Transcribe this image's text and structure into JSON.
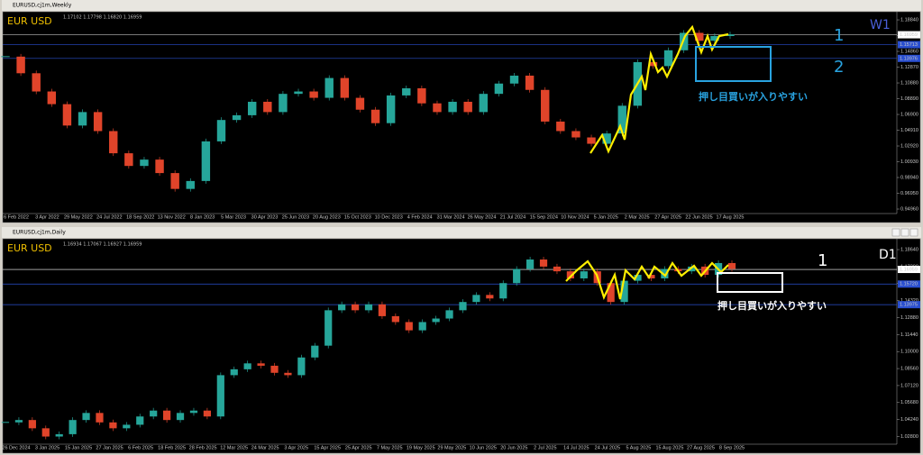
{
  "windows": [
    {
      "title": "EURUSD,cj1m,Weekly",
      "info": "1.17102 1.17798 1.16820 1.16959",
      "symbol": "EUR USD",
      "timeframe": "W1",
      "note": "押し目買いが入りやすい",
      "marks": [
        "1",
        "2"
      ],
      "ylim": [
        0.9371,
        1.193
      ],
      "yticks": [
        {
          "value": 1.1884,
          "label": "1.18840"
        },
        {
          "value": 1.1685,
          "label": "1.16850"
        },
        {
          "value": 1.1486,
          "label": "1.14860"
        },
        {
          "value": 1.1287,
          "label": "1.12870"
        },
        {
          "value": 1.1088,
          "label": "1.10880"
        },
        {
          "value": 1.0889,
          "label": "1.08890"
        },
        {
          "value": 1.069,
          "label": "1.06900"
        },
        {
          "value": 1.0491,
          "label": "1.04910"
        },
        {
          "value": 1.0292,
          "label": "1.02920"
        },
        {
          "value": 1.0093,
          "label": "1.00930"
        },
        {
          "value": 0.9894,
          "label": "0.98940"
        },
        {
          "value": 0.9695,
          "label": "0.96950"
        },
        {
          "value": 0.9496,
          "label": "0.94960"
        }
      ],
      "levels": [
        {
          "value": 1.16959,
          "label": "1.16959",
          "color": "#c0c0c0"
        },
        {
          "value": 1.15713,
          "label": "1.15713",
          "color": "#2a4fd0"
        },
        {
          "value": 1.13976,
          "label": "1.13976",
          "color": "#2a4fd0"
        }
      ],
      "dates": [
        "6 Feb 2022",
        "3 Apr 2022",
        "29 May 2022",
        "24 Jul 2022",
        "18 Sep 2022",
        "13 Nov 2022",
        "8 Jan 2023",
        "5 Mar 2023",
        "30 Apr 2023",
        "25 Jun 2023",
        "20 Aug 2023",
        "15 Oct 2023",
        "10 Dec 2023",
        "4 Feb 2024",
        "31 Mar 2024",
        "26 May 2024",
        "21 Jul 2024",
        "15 Sep 2024",
        "10 Nov 2024",
        "5 Jan 2025",
        "2 Mar 2025",
        "27 Apr 2025",
        "22 Jun 2025",
        "17 Aug 2025"
      ],
      "closes": [
        1.142,
        1.121,
        1.098,
        1.082,
        1.055,
        1.072,
        1.048,
        1.02,
        1.004,
        1.012,
        0.995,
        0.975,
        0.985,
        1.035,
        1.062,
        1.068,
        1.085,
        1.072,
        1.095,
        1.098,
        1.09,
        1.115,
        1.09,
        1.075,
        1.058,
        1.093,
        1.102,
        1.083,
        1.072,
        1.085,
        1.072,
        1.095,
        1.108,
        1.118,
        1.1,
        1.06,
        1.048,
        1.04,
        1.032,
        1.045,
        1.08,
        1.135,
        1.13,
        1.15,
        1.172,
        1.162,
        1.168,
        1.17
      ]
    },
    {
      "title": "EURUSD,cj1m,Daily",
      "info": "1.16934 1.17067 1.16927 1.16959",
      "symbol": "EUR USD",
      "timeframe": "D1",
      "note": "押し目買いが入りやすい",
      "marks": [
        "1"
      ],
      "ylim": [
        1.02,
        1.191
      ],
      "yticks": [
        {
          "value": 1.1864,
          "label": "1.18640"
        },
        {
          "value": 1.172,
          "label": "1.17200"
        },
        {
          "value": 1.1576,
          "label": "1.15760"
        },
        {
          "value": 1.1432,
          "label": "1.14320"
        },
        {
          "value": 1.1288,
          "label": "1.12880"
        },
        {
          "value": 1.1144,
          "label": "1.11440"
        },
        {
          "value": 1.1,
          "label": "1.10000"
        },
        {
          "value": 1.0856,
          "label": "1.08560"
        },
        {
          "value": 1.0712,
          "label": "1.07120"
        },
        {
          "value": 1.0568,
          "label": "1.05680"
        },
        {
          "value": 1.0424,
          "label": "1.04240"
        },
        {
          "value": 1.028,
          "label": "1.02800"
        }
      ],
      "levels": [
        {
          "value": 1.16959,
          "label": "1.16959",
          "color": "#ffffff"
        },
        {
          "value": 1.1572,
          "label": "1.15720",
          "color": "#2a4fd0"
        },
        {
          "value": 1.13975,
          "label": "1.13975",
          "color": "#2a4fd0"
        }
      ],
      "dates": [
        "26 Dec 2024",
        "3 Jan 2025",
        "15 Jan 2025",
        "27 Jan 2025",
        "6 Feb 2025",
        "18 Feb 2025",
        "28 Feb 2025",
        "12 Mar 2025",
        "24 Mar 2025",
        "3 Apr 2025",
        "15 Apr 2025",
        "25 Apr 2025",
        "7 May 2025",
        "19 May 2025",
        "29 May 2025",
        "10 Jun 2025",
        "20 Jun 2025",
        "2 Jul 2025",
        "14 Jul 2025",
        "24 Jul 2025",
        "5 Aug 2025",
        "15 Aug 2025",
        "27 Aug 2025",
        "8 Sep 2025"
      ],
      "closes": [
        1.04,
        1.042,
        1.035,
        1.028,
        1.03,
        1.042,
        1.048,
        1.04,
        1.035,
        1.038,
        1.045,
        1.05,
        1.042,
        1.048,
        1.05,
        1.045,
        1.08,
        1.085,
        1.09,
        1.088,
        1.082,
        1.08,
        1.095,
        1.105,
        1.135,
        1.14,
        1.135,
        1.14,
        1.13,
        1.125,
        1.118,
        1.125,
        1.128,
        1.135,
        1.142,
        1.148,
        1.145,
        1.158,
        1.17,
        1.178,
        1.172,
        1.168,
        1.162,
        1.168,
        1.158,
        1.142,
        1.16,
        1.165,
        1.162,
        1.17,
        1.168,
        1.172,
        1.165,
        1.175,
        1.17
      ]
    }
  ]
}
